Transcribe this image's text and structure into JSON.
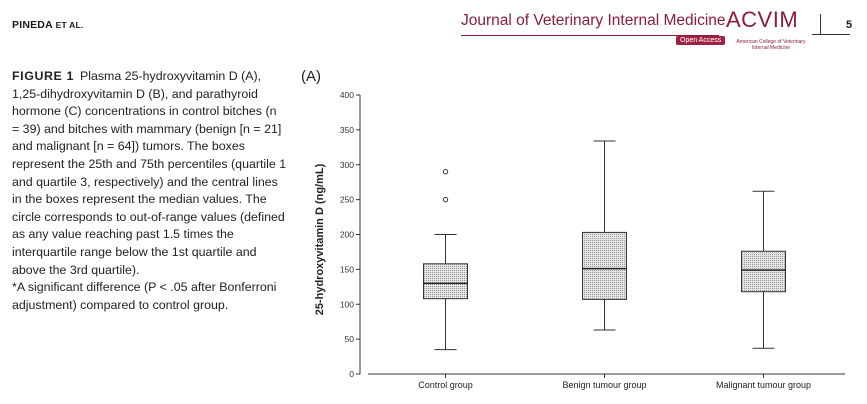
{
  "header": {
    "author": "PINEDA",
    "etal": "ET AL.",
    "journal": "Journal of Veterinary Internal Medicine",
    "open_access": "Open Access",
    "logo_word": "ACVIM",
    "logo_sub": "American College of Veterinary Internal Medicine",
    "page_number": "5"
  },
  "caption": {
    "label": "FIGURE 1",
    "paragraph_1": "Plasma 25-hydroxyvitamin D (A), 1,25-dihydroxyvitamin D (B), and parathyroid hormone (C) concentrations in control bitches (n = 39) and bitches with mammary (benign [n = 21] and malignant [n = 64]) tumors. The boxes represent the 25th and 75th percentiles (quartile 1 and quartile 3, respectively) and the central lines in the boxes represent the median values. The circle corresponds to out-of-range values (defined as any value reaching past 1.5 times the interquartile range below the 1st quartile and above the 3rd quartile).",
    "paragraph_2": "*A significant difference (P < .05 after Bonferroni adjustment) compared to control group."
  },
  "panel": {
    "label": "(A)"
  },
  "colors": {
    "brand": "#8c1d3a",
    "box_fill": "#d9d9d9",
    "line": "#333333"
  },
  "chart_data": {
    "type": "boxplot",
    "ylabel": "25-hydroxyvitamin D (ng/mL)",
    "xlabel": "",
    "ylim": [
      0,
      400
    ],
    "yticks": [
      0,
      50,
      100,
      150,
      200,
      250,
      300,
      350,
      400
    ],
    "categories": [
      "Control group",
      "Benign tumour group",
      "Malignant tumour group"
    ],
    "boxes": [
      {
        "whisker_low": 35,
        "q1": 108,
        "median": 130,
        "q3": 158,
        "whisker_high": 200,
        "outliers": [
          250,
          290
        ]
      },
      {
        "whisker_low": 63,
        "q1": 107,
        "median": 151,
        "q3": 203,
        "whisker_high": 334,
        "outliers": []
      },
      {
        "whisker_low": 37,
        "q1": 118,
        "median": 149,
        "q3": 176,
        "whisker_high": 262,
        "outliers": []
      }
    ]
  }
}
